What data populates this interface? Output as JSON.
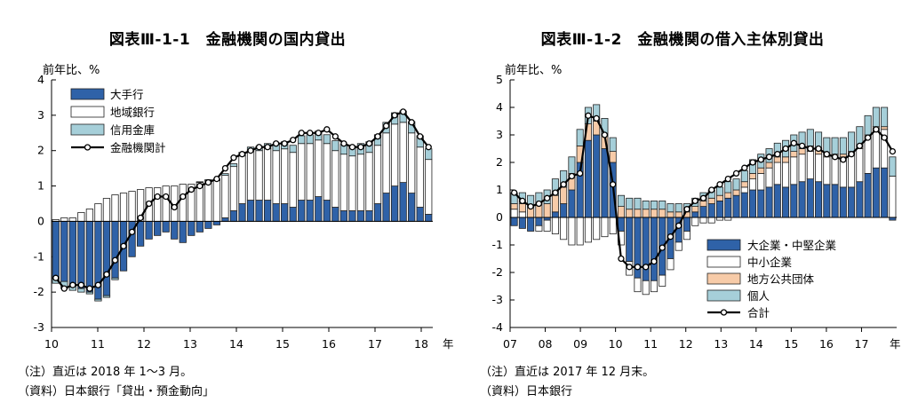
{
  "chart_data": [
    {
      "type": "bar",
      "title": "図表Ⅲ-1-1　金融機関の国内貸出",
      "ylabel": "前年比、%",
      "xunit": "年",
      "ylim": [
        -3,
        4
      ],
      "yticks": [
        "4",
        "3",
        "2",
        "1",
        "0",
        "-1",
        "-2",
        "-3"
      ],
      "xticks": [
        "10",
        "11",
        "12",
        "13",
        "14",
        "15",
        "16",
        "17",
        "18"
      ],
      "x_start": 10.0,
      "x_end": 18.25,
      "stacked": true,
      "series": [
        {
          "name": "大手行",
          "color": "#2f62a8",
          "values": [
            -1.6,
            -1.7,
            -1.8,
            -1.9,
            -2.0,
            -2.2,
            -2.1,
            -1.6,
            -1.4,
            -1.0,
            -0.7,
            -0.5,
            -0.4,
            -0.3,
            -0.5,
            -0.6,
            -0.4,
            -0.3,
            -0.2,
            -0.1,
            0.1,
            0.3,
            0.5,
            0.6,
            0.6,
            0.6,
            0.5,
            0.5,
            0.4,
            0.6,
            0.6,
            0.7,
            0.6,
            0.4,
            0.3,
            0.3,
            0.3,
            0.3,
            0.5,
            0.8,
            1.0,
            1.1,
            0.8,
            0.4,
            0.2
          ]
        },
        {
          "name": "地域銀行",
          "color": "#ffffff",
          "values": [
            0.05,
            0.1,
            0.1,
            0.25,
            0.35,
            0.5,
            0.65,
            0.75,
            0.8,
            0.85,
            0.9,
            0.95,
            0.95,
            1.0,
            1.0,
            1.05,
            1.05,
            1.1,
            1.15,
            1.15,
            1.2,
            1.25,
            1.35,
            1.4,
            1.4,
            1.45,
            1.5,
            1.55,
            1.55,
            1.6,
            1.6,
            1.6,
            1.6,
            1.6,
            1.6,
            1.55,
            1.6,
            1.65,
            1.65,
            1.7,
            1.75,
            1.7,
            1.7,
            1.7,
            1.55
          ]
        },
        {
          "name": "信用金庫",
          "color": "#a6cfd9",
          "values": [
            -0.15,
            -0.2,
            -0.15,
            -0.1,
            -0.05,
            -0.05,
            -0.05,
            -0.05,
            0.0,
            0.0,
            0.0,
            0.0,
            0.0,
            0.0,
            0.0,
            0.0,
            0.0,
            0.02,
            0.03,
            0.05,
            0.05,
            0.08,
            0.1,
            0.1,
            0.12,
            0.15,
            0.18,
            0.2,
            0.2,
            0.22,
            0.25,
            0.25,
            0.25,
            0.28,
            0.28,
            0.28,
            0.3,
            0.3,
            0.3,
            0.3,
            0.32,
            0.32,
            0.32,
            0.32,
            0.3
          ]
        },
        {
          "name": "金融機関計",
          "type": "line",
          "values": [
            -1.6,
            -1.9,
            -1.8,
            -1.8,
            -1.9,
            -1.8,
            -1.5,
            -1.1,
            -0.7,
            -0.3,
            0.1,
            0.5,
            0.7,
            0.7,
            0.4,
            0.7,
            0.9,
            1.0,
            1.1,
            1.2,
            1.5,
            1.8,
            1.9,
            2.0,
            2.1,
            2.1,
            2.2,
            2.2,
            2.3,
            2.5,
            2.5,
            2.5,
            2.6,
            2.4,
            2.2,
            2.1,
            2.1,
            2.2,
            2.4,
            2.7,
            3.0,
            3.1,
            2.8,
            2.4,
            2.1
          ]
        }
      ],
      "notes": [
        "（注）直近は 2018 年 1～3 月。",
        "（資料）日本銀行「貸出・預金動向」"
      ]
    },
    {
      "type": "bar",
      "title": "図表Ⅲ-1-2　金融機関の借入主体別貸出",
      "ylabel": "前年比、%",
      "xunit": "年",
      "ylim": [
        -4,
        5
      ],
      "yticks": [
        "5",
        "4",
        "3",
        "2",
        "1",
        "0",
        "-1",
        "-2",
        "-3",
        "-4"
      ],
      "xticks": [
        "07",
        "08",
        "09",
        "10",
        "11",
        "12",
        "13",
        "14",
        "15",
        "16",
        "17"
      ],
      "x_start": 7.0,
      "x_end": 18.0,
      "stacked": true,
      "series": [
        {
          "name": "大企業・中堅企業",
          "color": "#2f62a8",
          "values": [
            -0.3,
            -0.4,
            -0.5,
            -0.3,
            -0.1,
            0.2,
            0.5,
            1.0,
            2.0,
            2.8,
            3.0,
            2.5,
            2.0,
            -0.5,
            -1.6,
            -2.2,
            -2.3,
            -2.3,
            -2.1,
            -1.5,
            -0.9,
            -0.5,
            0.2,
            0.4,
            0.5,
            0.6,
            0.7,
            0.8,
            0.9,
            1.0,
            1.0,
            1.1,
            1.2,
            1.1,
            1.2,
            1.3,
            1.4,
            1.3,
            1.2,
            1.2,
            1.1,
            1.1,
            1.3,
            1.6,
            1.8,
            1.8,
            -0.1
          ]
        },
        {
          "name": "中小企業",
          "color": "#ffffff",
          "values": [
            0.3,
            0.2,
            0.0,
            -0.2,
            -0.4,
            -0.6,
            -0.8,
            -1.0,
            -1.0,
            -0.9,
            -0.8,
            -0.7,
            -0.6,
            -0.5,
            -0.5,
            -0.5,
            -0.5,
            -0.4,
            -0.4,
            -0.4,
            -0.3,
            -0.3,
            -0.3,
            -0.2,
            -0.2,
            -0.1,
            -0.1,
            0.0,
            0.2,
            0.4,
            0.6,
            0.7,
            0.8,
            0.9,
            1.0,
            1.0,
            1.0,
            1.0,
            1.0,
            1.0,
            1.1,
            1.2,
            1.2,
            1.3,
            1.4,
            1.4,
            1.5
          ]
        },
        {
          "name": "地方公共団体",
          "color": "#f7cba8",
          "values": [
            0.2,
            0.3,
            0.4,
            0.5,
            0.5,
            0.6,
            0.6,
            0.6,
            0.6,
            0.6,
            0.5,
            0.5,
            0.4,
            0.4,
            0.3,
            0.3,
            0.3,
            0.3,
            0.3,
            0.2,
            0.2,
            0.2,
            0.2,
            0.2,
            0.2,
            0.2,
            0.2,
            0.2,
            0.2,
            0.2,
            0.2,
            0.2,
            0.2,
            0.2,
            0.2,
            0.2,
            0.2,
            0.2,
            0.1,
            0.1,
            0.1,
            0.1,
            0.1,
            0.1,
            0.1,
            0.1,
            0.0
          ]
        },
        {
          "name": "個人",
          "color": "#a6cfd9",
          "values": [
            0.4,
            0.4,
            0.4,
            0.4,
            0.5,
            0.6,
            0.6,
            0.6,
            0.6,
            0.6,
            0.6,
            0.6,
            0.5,
            0.4,
            0.4,
            0.4,
            0.3,
            0.3,
            0.3,
            0.3,
            0.3,
            0.3,
            0.3,
            0.3,
            0.3,
            0.3,
            0.4,
            0.4,
            0.4,
            0.5,
            0.5,
            0.5,
            0.5,
            0.6,
            0.6,
            0.6,
            0.6,
            0.6,
            0.6,
            0.6,
            0.6,
            0.7,
            0.7,
            0.7,
            0.7,
            0.7,
            0.7
          ]
        },
        {
          "name": "合計",
          "type": "line",
          "values": [
            0.9,
            0.6,
            0.4,
            0.5,
            0.7,
            0.9,
            1.2,
            1.5,
            1.6,
            3.7,
            3.6,
            3.0,
            1.2,
            -1.5,
            -1.8,
            -1.8,
            -1.8,
            -1.6,
            -1.1,
            -0.7,
            -0.3,
            0.3,
            0.6,
            0.7,
            1.0,
            1.2,
            1.4,
            1.6,
            1.8,
            2.0,
            2.1,
            2.2,
            2.3,
            2.5,
            2.7,
            2.6,
            2.5,
            2.5,
            2.3,
            2.2,
            2.1,
            2.3,
            2.6,
            2.9,
            3.2,
            2.9,
            2.4
          ]
        }
      ],
      "notes": [
        "（注）直近は 2017 年 12 月末。",
        "（資料）日本銀行"
      ]
    }
  ]
}
